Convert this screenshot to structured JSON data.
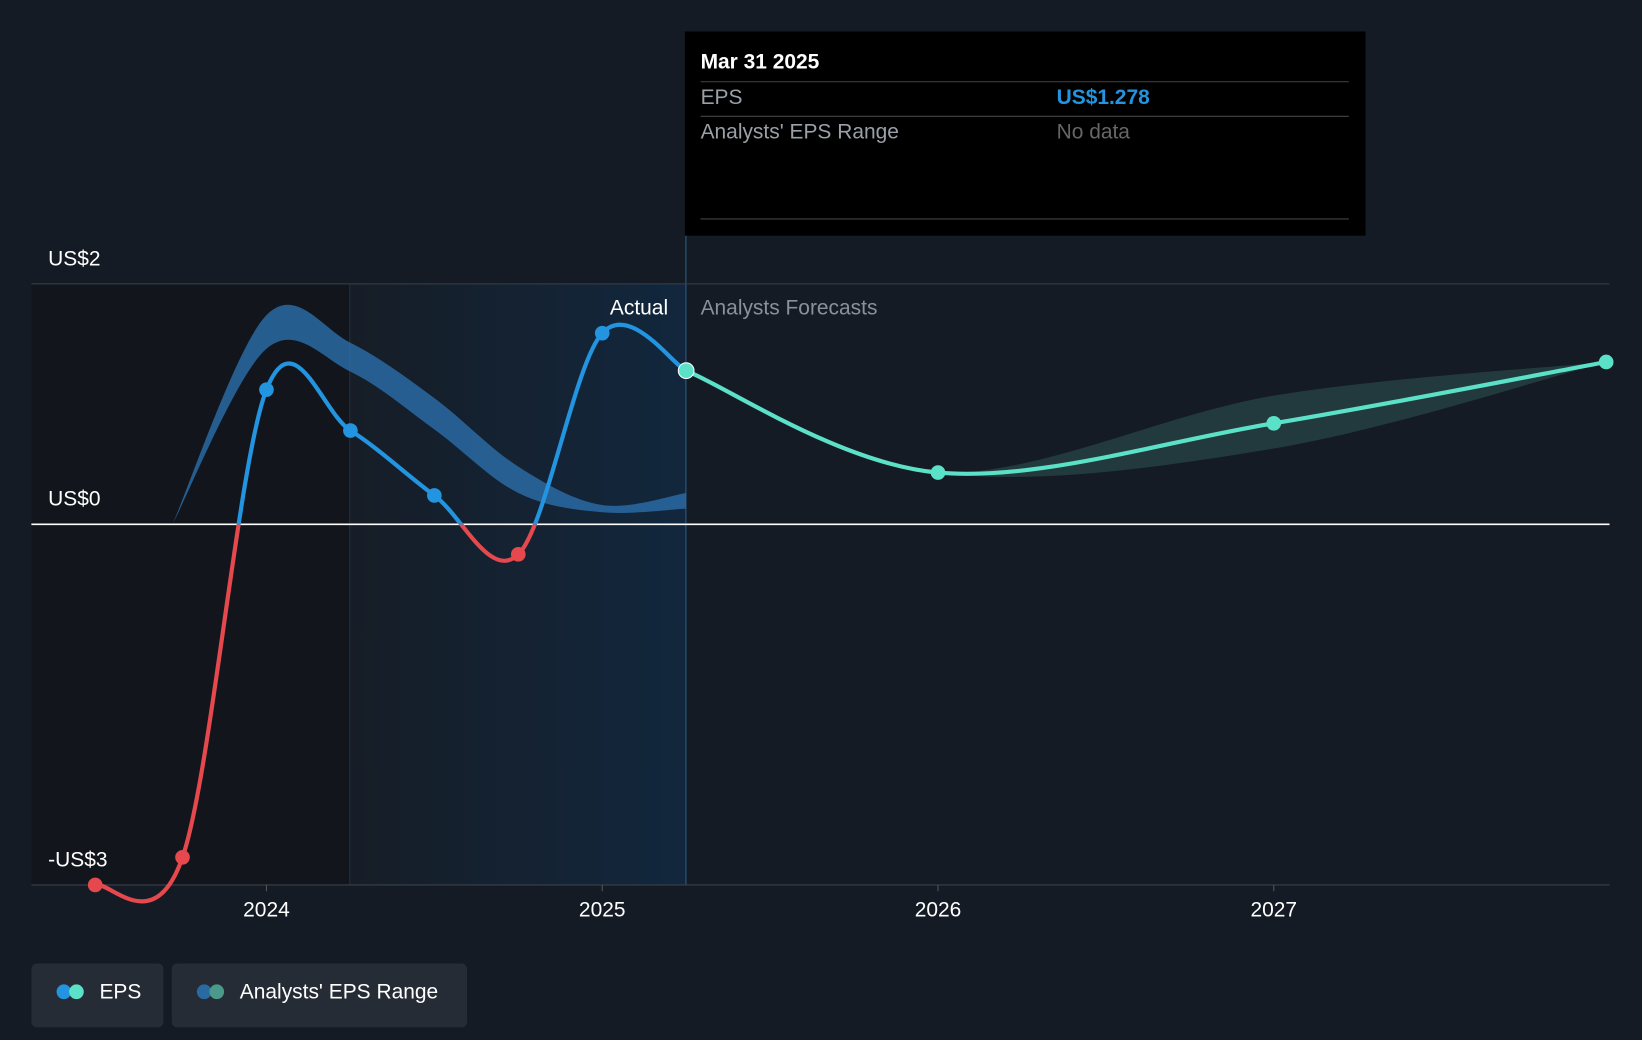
{
  "chart_data": {
    "type": "line",
    "xlim": [
      2023.3,
      2028.0
    ],
    "xticks": [
      2024,
      2025,
      2026,
      2027
    ],
    "ylim": [
      -3,
      2
    ],
    "yticks": [
      {
        "value": -3,
        "label": "-US$3"
      },
      {
        "value": 0,
        "label": "US$0"
      },
      {
        "value": 2,
        "label": "US$2"
      }
    ],
    "grid": true,
    "section_labels": [
      "Actual",
      "Analysts Forecasts"
    ],
    "series": [
      {
        "name": "EPS",
        "color": "#2394df",
        "negative_color": "#e5484d",
        "x": [
          2023.49,
          2023.75,
          2024.0,
          2024.25,
          2024.5,
          2024.75,
          2025.0,
          2025.25
        ],
        "values": [
          -3.0,
          -2.77,
          1.12,
          0.78,
          0.24,
          -0.25,
          1.59,
          1.278
        ]
      },
      {
        "color": "#5ce1c9",
        "x": [
          2025.25,
          2026.0,
          2027.0,
          2027.99
        ],
        "values": [
          1.278,
          0.43,
          0.84,
          1.35
        ]
      }
    ],
    "range": {
      "name": "Analysts' EPS Range",
      "segments": [
        {
          "color": "#2a6aa3",
          "x": [
            2023.72,
            2024.0,
            2024.25,
            2024.5,
            2024.75,
            2025.0,
            2025.25
          ],
          "high": [
            0.0,
            1.74,
            1.51,
            1.05,
            0.48,
            0.16,
            0.26
          ],
          "low": [
            0.0,
            1.46,
            1.27,
            0.79,
            0.26,
            0.1,
            0.13
          ]
        },
        {
          "color": "#2f5a58",
          "x": [
            2025.25,
            2026.0,
            2027.0,
            2027.99
          ],
          "high": [
            1.278,
            0.43,
            1.07,
            1.35
          ],
          "low": [
            1.278,
            0.43,
            0.63,
            1.35
          ]
        }
      ]
    },
    "tooltip": {
      "title": "Mar 31 2025",
      "rows": [
        {
          "label": "EPS",
          "value": "US$1.278"
        },
        {
          "label": "Analysts' EPS Range",
          "value": "No data"
        }
      ]
    }
  }
}
